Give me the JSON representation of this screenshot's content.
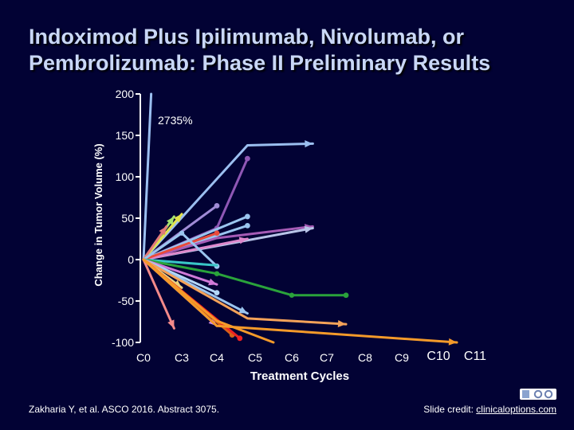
{
  "title": "Indoximod Plus Ipilimumab, Nivolumab, or Pembrolizumab: Phase II Preliminary Results",
  "citation": "Zakharia Y, et al. ASCO 2016. Abstract 3075.",
  "credit": {
    "prefix": "Slide credit: ",
    "link_text": "clinicaloptions.com"
  },
  "logo": {
    "icon": "clinical-options-logo-icon"
  },
  "colors": {
    "background": "#020234",
    "title": "#c9d7f6",
    "axis": "#ffffff"
  },
  "chart_data": {
    "type": "line",
    "ylabel": "Change in Tumor Volume (%)",
    "xlabel": "Treatment Cycles",
    "categories": [
      "C0",
      "C3",
      "C4",
      "C5",
      "C6",
      "C7",
      "C8",
      "C9",
      "C10",
      "C11"
    ],
    "yticks": [
      200,
      150,
      100,
      50,
      0,
      -50,
      -100
    ],
    "ylim": [
      -100,
      200
    ],
    "annotation": "2735%",
    "grid": false,
    "legend": "none",
    "series": [
      {
        "color": "#9bbff0",
        "points": [
          [
            0,
            0
          ],
          [
            0.2,
            200
          ]
        ],
        "marker": "none",
        "end": "line"
      },
      {
        "color": "#9bbff0",
        "points": [
          [
            0,
            0
          ],
          [
            2.8,
            138
          ],
          [
            4.6,
            140
          ]
        ],
        "marker": "none",
        "end": "arrow"
      },
      {
        "color": "#a08bd6",
        "points": [
          [
            0,
            0
          ],
          [
            2,
            65
          ]
        ],
        "marker": "dot",
        "end": "dot"
      },
      {
        "color": "#8f57b5",
        "points": [
          [
            0,
            0
          ],
          [
            2,
            38
          ],
          [
            2.8,
            122
          ]
        ],
        "marker": "dot",
        "end": "dot"
      },
      {
        "color": "#9bc5ef",
        "points": [
          [
            0,
            0
          ],
          [
            2.8,
            52
          ]
        ],
        "marker": "dot",
        "end": "dot"
      },
      {
        "color": "#9bc5ef",
        "points": [
          [
            0,
            0
          ],
          [
            2.8,
            41
          ]
        ],
        "marker": "dot",
        "end": "dot"
      },
      {
        "color": "#a55bb5",
        "points": [
          [
            0,
            0
          ],
          [
            2,
            26
          ],
          [
            4.6,
            40
          ]
        ],
        "marker": "none",
        "end": "arrow"
      },
      {
        "color": "#b8c4e8",
        "points": [
          [
            0,
            0
          ],
          [
            4.6,
            38
          ]
        ],
        "marker": "none",
        "end": "arrow"
      },
      {
        "color": "#dd88cc",
        "points": [
          [
            0,
            0
          ],
          [
            2.8,
            25
          ]
        ],
        "marker": "none",
        "end": "arrow"
      },
      {
        "color": "#e3e34a",
        "points": [
          [
            0,
            0
          ],
          [
            1,
            55
          ]
        ],
        "marker": "none",
        "end": "arrow"
      },
      {
        "color": "#a7e36f",
        "points": [
          [
            0,
            0
          ],
          [
            0.8,
            52
          ]
        ],
        "marker": "none",
        "end": "arrow"
      },
      {
        "color": "#e37a7a",
        "points": [
          [
            0,
            0
          ],
          [
            0.6,
            40
          ]
        ],
        "marker": "none",
        "end": "arrow"
      },
      {
        "color": "#e94b3c",
        "points": [
          [
            0,
            0
          ],
          [
            2,
            32
          ]
        ],
        "marker": "dot",
        "end": "dot"
      },
      {
        "color": "#9bc5ef",
        "points": [
          [
            0,
            0
          ],
          [
            1,
            32
          ],
          [
            2,
            -8
          ]
        ],
        "marker": "dot",
        "end": "dot"
      },
      {
        "color": "#39c6c6",
        "points": [
          [
            0,
            0
          ],
          [
            2,
            -7
          ]
        ],
        "marker": "none",
        "end": "line"
      },
      {
        "color": "#2aa33b",
        "points": [
          [
            0,
            0
          ],
          [
            2,
            -17
          ],
          [
            4,
            -43
          ],
          [
            5.5,
            -43
          ]
        ],
        "marker": "dot",
        "end": "dot"
      },
      {
        "color": "#d07ad8",
        "points": [
          [
            0,
            0
          ],
          [
            2,
            -30
          ]
        ],
        "marker": "none",
        "end": "arrow"
      },
      {
        "color": "#e9d27d",
        "points": [
          [
            0,
            0
          ],
          [
            1,
            -34
          ]
        ],
        "marker": "none",
        "end": "arrow"
      },
      {
        "color": "#b4d7f7",
        "points": [
          [
            0,
            0
          ],
          [
            2,
            -40
          ]
        ],
        "marker": "dot",
        "end": "dot"
      },
      {
        "color": "#9bc5ef",
        "points": [
          [
            0,
            0
          ],
          [
            2.8,
            -65
          ]
        ],
        "marker": "none",
        "end": "arrow"
      },
      {
        "color": "#cc88e8",
        "points": [
          [
            0,
            0
          ],
          [
            2,
            -80
          ]
        ],
        "marker": "none",
        "end": "arrow"
      },
      {
        "color": "#f4a259",
        "points": [
          [
            0,
            0
          ],
          [
            2.8,
            -71
          ],
          [
            5.5,
            -78
          ]
        ],
        "marker": "none",
        "end": "arrow"
      },
      {
        "color": "#f48a8a",
        "points": [
          [
            0,
            0
          ],
          [
            0.8,
            -83
          ]
        ],
        "marker": "none",
        "end": "arrow"
      },
      {
        "color": "#d86018",
        "points": [
          [
            0,
            0
          ],
          [
            2.4,
            -91
          ]
        ],
        "marker": "dot",
        "end": "dot"
      },
      {
        "color": "#ee2222",
        "points": [
          [
            0,
            0
          ],
          [
            2.6,
            -95
          ]
        ],
        "marker": "dot",
        "end": "dot"
      },
      {
        "color": "#f49a2a",
        "points": [
          [
            0,
            0
          ],
          [
            2,
            -74
          ],
          [
            3.5,
            -100
          ]
        ],
        "marker": "none",
        "end": "line"
      },
      {
        "color": "#f49a2a",
        "points": [
          [
            0,
            0
          ],
          [
            2,
            -80
          ],
          [
            8.5,
            -100
          ]
        ],
        "marker": "none",
        "end": "arrow"
      }
    ]
  }
}
